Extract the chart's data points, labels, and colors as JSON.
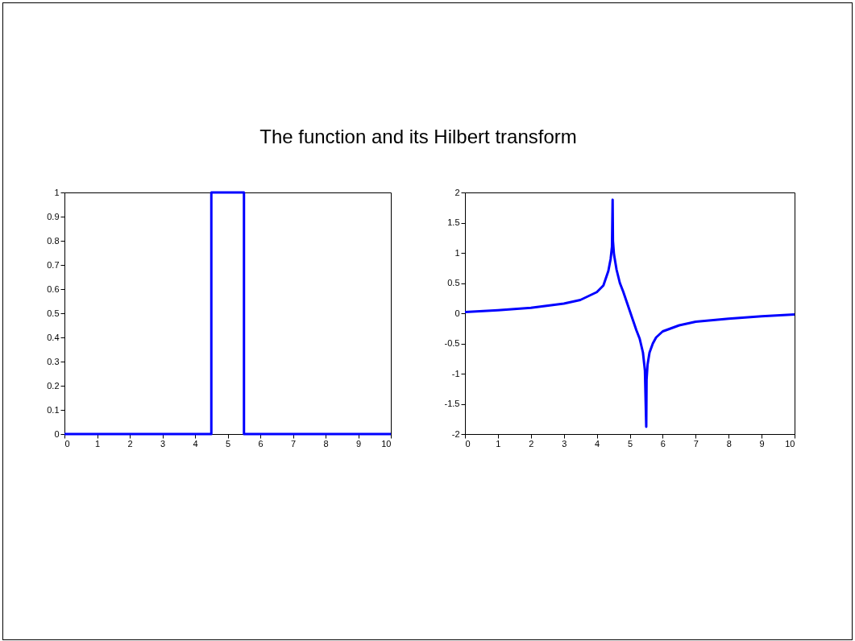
{
  "chart_data": [
    {
      "type": "line",
      "title": "The function and its Hilbert transform",
      "x": [
        0,
        4.5,
        4.5,
        5.5,
        5.5,
        10
      ],
      "values": [
        0,
        0,
        1,
        1,
        0,
        0
      ],
      "color": "#0000ff",
      "xlim": [
        0,
        10
      ],
      "ylim": [
        0,
        1
      ],
      "xticks": [
        0,
        1,
        2,
        3,
        4,
        5,
        6,
        7,
        8,
        9,
        10
      ],
      "yticks": [
        0,
        0.1,
        0.2,
        0.3,
        0.4,
        0.5,
        0.6,
        0.7,
        0.8,
        0.9,
        1
      ],
      "grid": false
    },
    {
      "type": "line",
      "x": [
        0,
        1,
        2,
        3,
        3.5,
        4,
        4.2,
        4.35,
        4.42,
        4.46,
        4.48,
        4.49,
        4.52,
        4.6,
        4.7,
        4.8,
        4.9,
        5,
        5.1,
        5.2,
        5.3,
        5.4,
        5.46,
        5.5,
        5.51,
        5.54,
        5.6,
        5.7,
        5.8,
        6,
        6.5,
        7,
        8,
        9,
        10
      ],
      "values": [
        0.02,
        0.05,
        0.09,
        0.16,
        0.22,
        0.35,
        0.46,
        0.7,
        0.9,
        1.1,
        1.88,
        1.2,
        0.98,
        0.72,
        0.5,
        0.36,
        0.2,
        0.04,
        -0.12,
        -0.28,
        -0.42,
        -0.65,
        -0.95,
        -1.88,
        -1.1,
        -0.85,
        -0.65,
        -0.5,
        -0.4,
        -0.3,
        -0.2,
        -0.14,
        -0.09,
        -0.05,
        -0.02
      ],
      "color": "#0000ff",
      "xlim": [
        0,
        10
      ],
      "ylim": [
        -2,
        2
      ],
      "xticks": [
        0,
        1,
        2,
        3,
        4,
        5,
        6,
        7,
        8,
        9,
        10
      ],
      "yticks": [
        -2,
        -1.5,
        -1,
        -0.5,
        0,
        0.5,
        1,
        1.5,
        2
      ],
      "grid": false
    }
  ]
}
